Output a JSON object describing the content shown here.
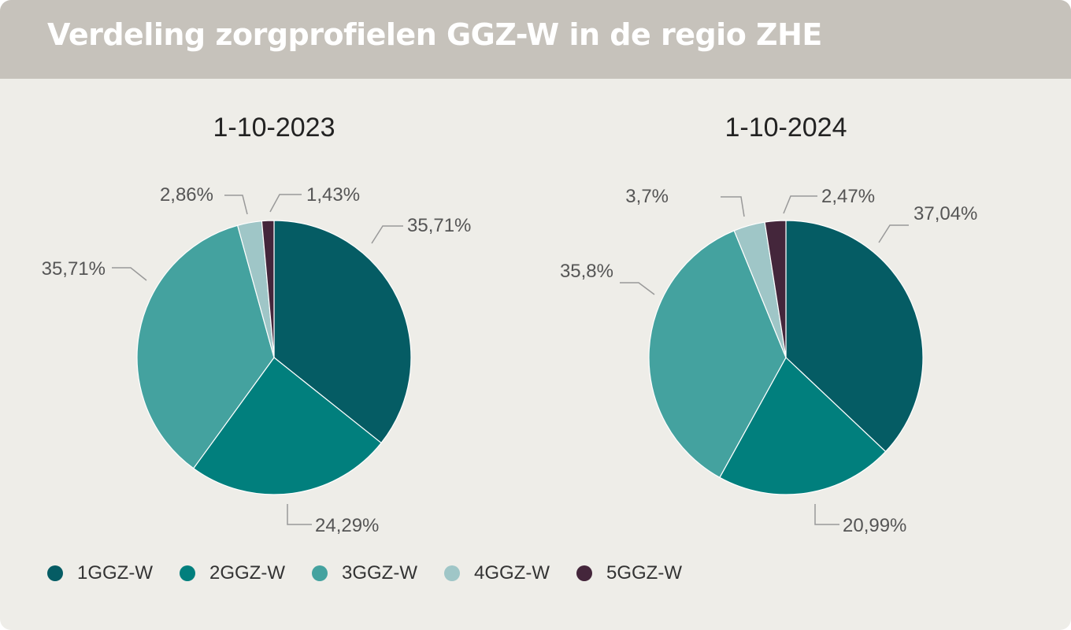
{
  "header": {
    "title": "Verdeling zorgprofielen GGZ-W in de regio ZHE"
  },
  "colors": {
    "1GGZ-W": "#055c64",
    "2GGZ-W": "#017f7d",
    "3GGZ-W": "#44a29f",
    "4GGZ-W": "#9fc6c7",
    "5GGZ-W": "#44263b"
  },
  "legend": {
    "items": [
      {
        "label": "1GGZ-W"
      },
      {
        "label": "2GGZ-W"
      },
      {
        "label": "3GGZ-W"
      },
      {
        "label": "4GGZ-W"
      },
      {
        "label": "5GGZ-W"
      }
    ]
  },
  "chart_data": [
    {
      "type": "pie",
      "title": "1-10-2023",
      "categories": [
        "1GGZ-W",
        "2GGZ-W",
        "3GGZ-W",
        "4GGZ-W",
        "5GGZ-W"
      ],
      "values": [
        35.71,
        24.29,
        35.71,
        2.86,
        1.43
      ],
      "labels": [
        "35,71%",
        "24,29%",
        "35,71%",
        "2,86%",
        "1,43%"
      ],
      "legend": "bottom"
    },
    {
      "type": "pie",
      "title": "1-10-2024",
      "categories": [
        "1GGZ-W",
        "2GGZ-W",
        "3GGZ-W",
        "4GGZ-W",
        "5GGZ-W"
      ],
      "values": [
        37.04,
        20.99,
        35.8,
        3.7,
        2.47
      ],
      "labels": [
        "37,04%",
        "20,99%",
        "35,8%",
        "3,7%",
        "2,47%"
      ],
      "legend": "bottom"
    }
  ]
}
